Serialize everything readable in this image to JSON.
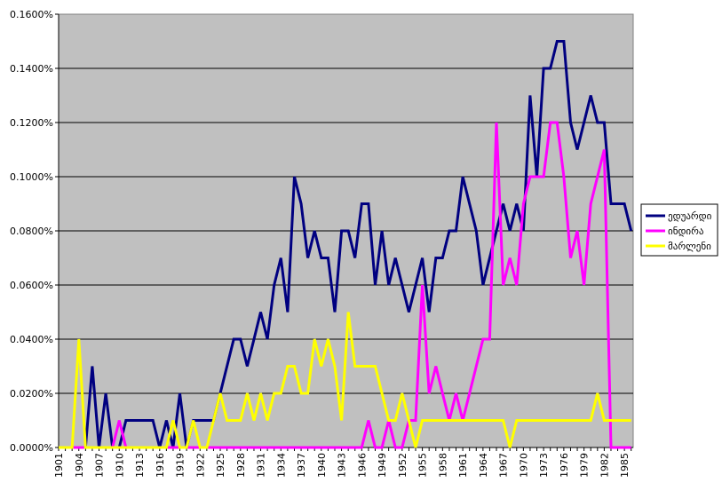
{
  "chart_data": {
    "type": "line",
    "title": "",
    "xlabel": "",
    "ylabel": "",
    "ylim": [
      0,
      0.16
    ],
    "y_unit": "%",
    "grid": true,
    "plot_background": "#c0c0c0",
    "legend_position": "right",
    "x_tick_labels": [
      "1901",
      "1904",
      "1907",
      "1910",
      "1913",
      "1916",
      "1919",
      "1922",
      "1925",
      "1928",
      "1931",
      "1934",
      "1937",
      "1940",
      "1943",
      "1946",
      "1949",
      "1952",
      "1955",
      "1958",
      "1961",
      "1964",
      "1967",
      "1970",
      "1973",
      "1976",
      "1979",
      "1982",
      "1985"
    ],
    "y_tick_labels": [
      "0.0000%",
      "0.0200%",
      "0.0400%",
      "0.0600%",
      "0.0800%",
      "0.1000%",
      "0.1200%",
      "0.1400%",
      "0.1600%"
    ],
    "x_start": 1901,
    "x_end": 1986,
    "series": [
      {
        "name": "ედუარდი",
        "color": "#000080",
        "points": [
          [
            1901,
            0
          ],
          [
            1902,
            0
          ],
          [
            1903,
            0
          ],
          [
            1904,
            0
          ],
          [
            1905,
            0
          ],
          [
            1906,
            0.03
          ],
          [
            1907,
            0
          ],
          [
            1908,
            0.02
          ],
          [
            1909,
            0
          ],
          [
            1910,
            0
          ],
          [
            1911,
            0.01
          ],
          [
            1912,
            0.01
          ],
          [
            1913,
            0.01
          ],
          [
            1914,
            0.01
          ],
          [
            1915,
            0.01
          ],
          [
            1916,
            0
          ],
          [
            1917,
            0.01
          ],
          [
            1918,
            0
          ],
          [
            1919,
            0.02
          ],
          [
            1920,
            0
          ],
          [
            1921,
            0.01
          ],
          [
            1922,
            0.01
          ],
          [
            1923,
            0.01
          ],
          [
            1924,
            0.01
          ],
          [
            1925,
            0.02
          ],
          [
            1926,
            0.03
          ],
          [
            1927,
            0.04
          ],
          [
            1928,
            0.04
          ],
          [
            1929,
            0.03
          ],
          [
            1930,
            0.04
          ],
          [
            1931,
            0.05
          ],
          [
            1932,
            0.04
          ],
          [
            1933,
            0.06
          ],
          [
            1934,
            0.07
          ],
          [
            1935,
            0.05
          ],
          [
            1936,
            0.1
          ],
          [
            1937,
            0.09
          ],
          [
            1938,
            0.07
          ],
          [
            1939,
            0.08
          ],
          [
            1940,
            0.07
          ],
          [
            1941,
            0.07
          ],
          [
            1942,
            0.05
          ],
          [
            1943,
            0.08
          ],
          [
            1944,
            0.08
          ],
          [
            1945,
            0.07
          ],
          [
            1946,
            0.09
          ],
          [
            1947,
            0.09
          ],
          [
            1948,
            0.06
          ],
          [
            1949,
            0.08
          ],
          [
            1950,
            0.06
          ],
          [
            1951,
            0.07
          ],
          [
            1952,
            0.06
          ],
          [
            1953,
            0.05
          ],
          [
            1954,
            0.06
          ],
          [
            1955,
            0.07
          ],
          [
            1956,
            0.05
          ],
          [
            1957,
            0.07
          ],
          [
            1958,
            0.07
          ],
          [
            1959,
            0.08
          ],
          [
            1960,
            0.08
          ],
          [
            1961,
            0.1
          ],
          [
            1962,
            0.09
          ],
          [
            1963,
            0.08
          ],
          [
            1964,
            0.06
          ],
          [
            1965,
            0.07
          ],
          [
            1966,
            0.08
          ],
          [
            1967,
            0.09
          ],
          [
            1968,
            0.08
          ],
          [
            1969,
            0.09
          ],
          [
            1970,
            0.08
          ],
          [
            1971,
            0.13
          ],
          [
            1972,
            0.1
          ],
          [
            1973,
            0.14
          ],
          [
            1974,
            0.14
          ],
          [
            1975,
            0.15
          ],
          [
            1976,
            0.15
          ],
          [
            1977,
            0.12
          ],
          [
            1978,
            0.11
          ],
          [
            1979,
            0.12
          ],
          [
            1980,
            0.13
          ],
          [
            1981,
            0.12
          ],
          [
            1982,
            0.12
          ],
          [
            1983,
            0.09
          ],
          [
            1984,
            0.09
          ],
          [
            1985,
            0.09
          ],
          [
            1986,
            0.08
          ]
        ]
      },
      {
        "name": "ინდირა",
        "color": "#ff00ff",
        "points": [
          [
            1901,
            0
          ],
          [
            1902,
            0
          ],
          [
            1903,
            0
          ],
          [
            1904,
            0
          ],
          [
            1905,
            0
          ],
          [
            1906,
            0
          ],
          [
            1907,
            0
          ],
          [
            1908,
            0
          ],
          [
            1909,
            0
          ],
          [
            1910,
            0.01
          ],
          [
            1911,
            0
          ],
          [
            1912,
            0
          ],
          [
            1913,
            0
          ],
          [
            1914,
            0
          ],
          [
            1915,
            0
          ],
          [
            1916,
            0
          ],
          [
            1917,
            0
          ],
          [
            1918,
            0
          ],
          [
            1919,
            0
          ],
          [
            1920,
            0
          ],
          [
            1921,
            0
          ],
          [
            1922,
            0
          ],
          [
            1923,
            0
          ],
          [
            1924,
            0
          ],
          [
            1925,
            0
          ],
          [
            1926,
            0
          ],
          [
            1927,
            0
          ],
          [
            1928,
            0
          ],
          [
            1929,
            0
          ],
          [
            1930,
            0
          ],
          [
            1931,
            0
          ],
          [
            1932,
            0
          ],
          [
            1933,
            0
          ],
          [
            1934,
            0
          ],
          [
            1935,
            0
          ],
          [
            1936,
            0
          ],
          [
            1937,
            0
          ],
          [
            1938,
            0
          ],
          [
            1939,
            0
          ],
          [
            1940,
            0
          ],
          [
            1941,
            0
          ],
          [
            1942,
            0
          ],
          [
            1943,
            0
          ],
          [
            1944,
            0
          ],
          [
            1945,
            0
          ],
          [
            1946,
            0
          ],
          [
            1947,
            0.01
          ],
          [
            1948,
            0
          ],
          [
            1949,
            0
          ],
          [
            1950,
            0.01
          ],
          [
            1951,
            0
          ],
          [
            1952,
            0
          ],
          [
            1953,
            0.01
          ],
          [
            1954,
            0.01
          ],
          [
            1955,
            0.06
          ],
          [
            1956,
            0.02
          ],
          [
            1957,
            0.03
          ],
          [
            1958,
            0.02
          ],
          [
            1959,
            0.01
          ],
          [
            1960,
            0.02
          ],
          [
            1961,
            0.01
          ],
          [
            1962,
            0.02
          ],
          [
            1963,
            0.03
          ],
          [
            1964,
            0.04
          ],
          [
            1965,
            0.04
          ],
          [
            1966,
            0.12
          ],
          [
            1967,
            0.06
          ],
          [
            1968,
            0.07
          ],
          [
            1969,
            0.06
          ],
          [
            1970,
            0.09
          ],
          [
            1971,
            0.1
          ],
          [
            1972,
            0.1
          ],
          [
            1973,
            0.1
          ],
          [
            1974,
            0.12
          ],
          [
            1975,
            0.12
          ],
          [
            1976,
            0.1
          ],
          [
            1977,
            0.07
          ],
          [
            1978,
            0.08
          ],
          [
            1979,
            0.06
          ],
          [
            1980,
            0.09
          ],
          [
            1981,
            0.1
          ],
          [
            1982,
            0.11
          ],
          [
            1983,
            0
          ],
          [
            1984,
            0
          ],
          [
            1985,
            0
          ],
          [
            1986,
            0
          ]
        ]
      },
      {
        "name": "მარლენი",
        "color": "#ffff00",
        "points": [
          [
            1901,
            0
          ],
          [
            1902,
            0
          ],
          [
            1903,
            0
          ],
          [
            1904,
            0.04
          ],
          [
            1905,
            0
          ],
          [
            1906,
            0
          ],
          [
            1907,
            0
          ],
          [
            1908,
            0
          ],
          [
            1909,
            0
          ],
          [
            1910,
            0
          ],
          [
            1911,
            0
          ],
          [
            1912,
            0
          ],
          [
            1913,
            0
          ],
          [
            1914,
            0
          ],
          [
            1915,
            0
          ],
          [
            1916,
            0
          ],
          [
            1917,
            0
          ],
          [
            1918,
            0.01
          ],
          [
            1919,
            0
          ],
          [
            1920,
            0
          ],
          [
            1921,
            0.01
          ],
          [
            1922,
            0
          ],
          [
            1923,
            0
          ],
          [
            1924,
            0.01
          ],
          [
            1925,
            0.02
          ],
          [
            1926,
            0.01
          ],
          [
            1927,
            0.01
          ],
          [
            1928,
            0.01
          ],
          [
            1929,
            0.02
          ],
          [
            1930,
            0.01
          ],
          [
            1931,
            0.02
          ],
          [
            1932,
            0.01
          ],
          [
            1933,
            0.02
          ],
          [
            1934,
            0.02
          ],
          [
            1935,
            0.03
          ],
          [
            1936,
            0.03
          ],
          [
            1937,
            0.02
          ],
          [
            1938,
            0.02
          ],
          [
            1939,
            0.04
          ],
          [
            1940,
            0.03
          ],
          [
            1941,
            0.04
          ],
          [
            1942,
            0.03
          ],
          [
            1943,
            0.01
          ],
          [
            1944,
            0.05
          ],
          [
            1945,
            0.03
          ],
          [
            1946,
            0.03
          ],
          [
            1947,
            0.03
          ],
          [
            1948,
            0.03
          ],
          [
            1949,
            0.02
          ],
          [
            1950,
            0.01
          ],
          [
            1951,
            0.01
          ],
          [
            1952,
            0.02
          ],
          [
            1953,
            0.01
          ],
          [
            1954,
            0
          ],
          [
            1955,
            0.01
          ],
          [
            1956,
            0.01
          ],
          [
            1957,
            0.01
          ],
          [
            1958,
            0.01
          ],
          [
            1959,
            0.01
          ],
          [
            1960,
            0.01
          ],
          [
            1961,
            0.01
          ],
          [
            1962,
            0.01
          ],
          [
            1963,
            0.01
          ],
          [
            1964,
            0.01
          ],
          [
            1965,
            0.01
          ],
          [
            1966,
            0.01
          ],
          [
            1967,
            0.01
          ],
          [
            1968,
            0
          ],
          [
            1969,
            0.01
          ],
          [
            1970,
            0.01
          ],
          [
            1971,
            0.01
          ],
          [
            1972,
            0.01
          ],
          [
            1973,
            0.01
          ],
          [
            1974,
            0.01
          ],
          [
            1975,
            0.01
          ],
          [
            1976,
            0.01
          ],
          [
            1977,
            0.01
          ],
          [
            1978,
            0.01
          ],
          [
            1979,
            0.01
          ],
          [
            1980,
            0.01
          ],
          [
            1981,
            0.02
          ],
          [
            1982,
            0.01
          ],
          [
            1983,
            0.01
          ],
          [
            1984,
            0.01
          ],
          [
            1985,
            0.01
          ],
          [
            1986,
            0.01
          ]
        ]
      }
    ]
  }
}
